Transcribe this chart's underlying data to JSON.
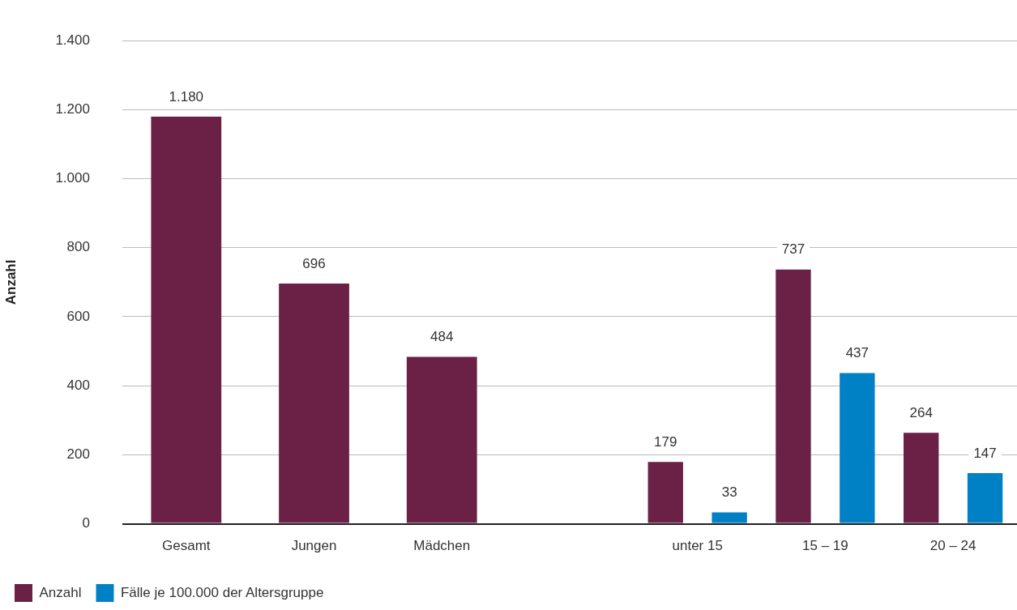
{
  "chart_data": {
    "type": "bar",
    "ylabel": "Anzahl",
    "categories": [
      "Gesamt",
      "Jungen",
      "Mädchen",
      null,
      "unter 15",
      "15 – 19",
      "20 – 24"
    ],
    "series": [
      {
        "name": "Anzahl",
        "color": "#6b2046",
        "values": [
          1180,
          696,
          484,
          null,
          179,
          737,
          264
        ],
        "value_labels": [
          "1.180",
          "696",
          "484",
          null,
          "179",
          "737",
          "264"
        ]
      },
      {
        "name": "Fälle je 100.000 der Altersgruppe",
        "color": "#0081c6",
        "values": [
          null,
          null,
          null,
          null,
          33,
          437,
          147
        ],
        "value_labels": [
          null,
          null,
          null,
          null,
          "33",
          "437",
          "147"
        ]
      }
    ],
    "ylim": [
      0,
      1400
    ],
    "yticks": [
      0,
      {
        "value": 200,
        "label": "200"
      },
      {
        "value": 400,
        "label": "400"
      },
      {
        "value": 600,
        "label": "600"
      },
      {
        "value": 800,
        "label": "800"
      },
      {
        "value": 1000,
        "label": "1.000"
      },
      {
        "value": 1200,
        "label": "1.200"
      },
      {
        "value": 1400,
        "label": "1.400"
      }
    ],
    "grid": "y",
    "legend": "bottom left"
  }
}
